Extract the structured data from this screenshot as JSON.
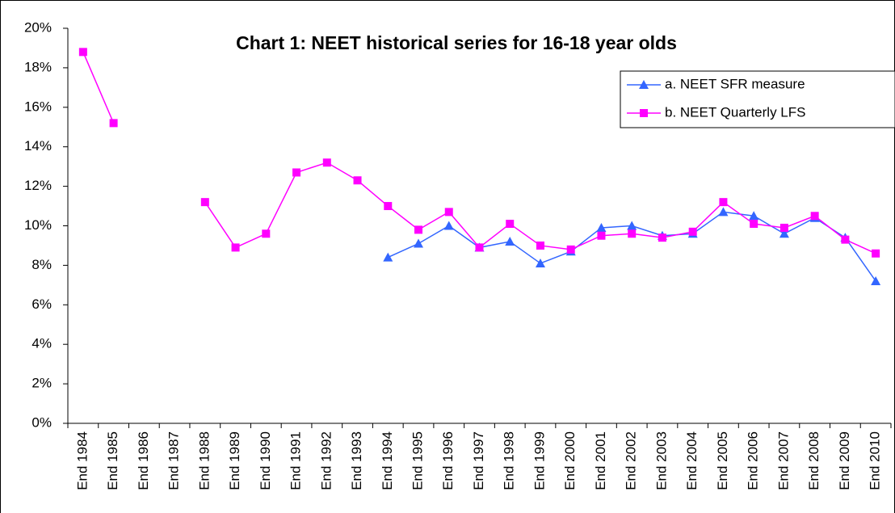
{
  "chart_data": {
    "type": "line",
    "title": "Chart 1: NEET historical series for 16-18 year olds",
    "categories": [
      "End 1984",
      "End 1985",
      "End 1986",
      "End 1987",
      "End 1988",
      "End 1989",
      "End 1990",
      "End 1991",
      "End 1992",
      "End 1993",
      "End 1994",
      "End 1995",
      "End 1996",
      "End 1997",
      "End 1998",
      "End 1999",
      "End 2000",
      "End 2001",
      "End 2002",
      "End 2003",
      "End 2004",
      "End 2005",
      "End 2006",
      "End 2007",
      "End 2008",
      "End 2009",
      "End 2010"
    ],
    "series": [
      {
        "name": "a. NEET SFR measure",
        "color": "#3366ff",
        "marker": "triangle",
        "values": [
          null,
          null,
          null,
          null,
          null,
          null,
          null,
          null,
          null,
          null,
          8.4,
          9.1,
          10.0,
          8.9,
          9.2,
          8.1,
          8.7,
          9.9,
          10.0,
          9.5,
          9.6,
          10.7,
          10.5,
          9.6,
          10.4,
          9.4,
          7.2
        ]
      },
      {
        "name": "b. NEET Quarterly LFS",
        "color": "#ff00ff",
        "marker": "square",
        "values": [
          18.8,
          15.2,
          null,
          null,
          11.2,
          8.9,
          9.6,
          12.7,
          13.2,
          12.3,
          11.0,
          9.8,
          10.7,
          8.9,
          10.1,
          9.0,
          8.8,
          9.5,
          9.6,
          9.4,
          9.7,
          11.2,
          10.1,
          9.9,
          10.5,
          9.3,
          8.6
        ]
      }
    ],
    "ylim": [
      0,
      20
    ],
    "yticks": [
      {
        "value": 0,
        "label": "0%"
      },
      {
        "value": 2,
        "label": "2%"
      },
      {
        "value": 4,
        "label": "4%"
      },
      {
        "value": 6,
        "label": "6%"
      },
      {
        "value": 8,
        "label": "8%"
      },
      {
        "value": 10,
        "label": "10%"
      },
      {
        "value": 12,
        "label": "12%"
      },
      {
        "value": 14,
        "label": "14%"
      },
      {
        "value": 16,
        "label": "16%"
      },
      {
        "value": 18,
        "label": "18%"
      },
      {
        "value": 20,
        "label": "20%"
      }
    ],
    "grid": false,
    "legend": "top-right"
  }
}
